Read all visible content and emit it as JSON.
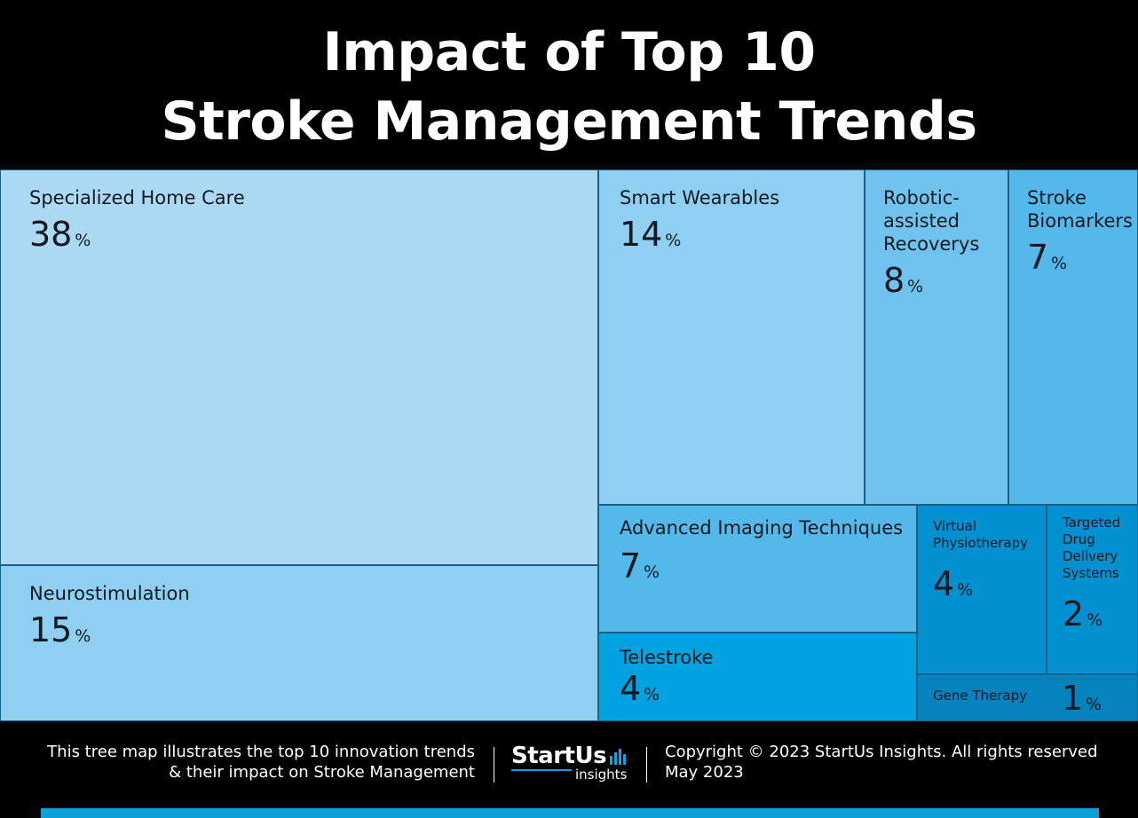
{
  "title_line1": "Impact of Top 10",
  "title_line2": "Stroke Management Trends",
  "chart_data": {
    "type": "treemap",
    "unit": "%",
    "items": [
      {
        "label": "Specialized Home Care",
        "value": 38,
        "color": "#acdaf5"
      },
      {
        "label": "Neurostimulation",
        "value": 15,
        "color": "#8fd0f2"
      },
      {
        "label": "Smart Wearables",
        "value": 14,
        "color": "#8fd0f2"
      },
      {
        "label": "Robotic-\nassisted\nRecoverys",
        "value": 8,
        "color": "#70c3ee"
      },
      {
        "label": "Stroke\nBiomarkers",
        "value": 7,
        "color": "#55b8ea"
      },
      {
        "label": "Advanced Imaging Techniques",
        "value": 7,
        "color": "#55b8ea"
      },
      {
        "label": "Telestroke",
        "value": 4,
        "color": "#00a2df"
      },
      {
        "label": "Virtual\nPhysiotherapy",
        "value": 4,
        "color": "#0290d0"
      },
      {
        "label": "Targeted\nDrug\nDelivery\nSystems",
        "value": 2,
        "color": "#0290d0"
      },
      {
        "label": "Gene Therapy",
        "value": 1,
        "color": "#0682be"
      }
    ]
  },
  "footer": {
    "description_line1": "This tree map illustrates the top 10 innovation trends",
    "description_line2": "& their impact on Stroke Management",
    "logo_text": "StartUs",
    "logo_sub": "insights",
    "copyright": "Copyright © 2023 StartUs Insights. All rights reserved",
    "date": "May 2023"
  },
  "colors": {
    "accent": "#0aa0d8",
    "background": "#000000"
  }
}
